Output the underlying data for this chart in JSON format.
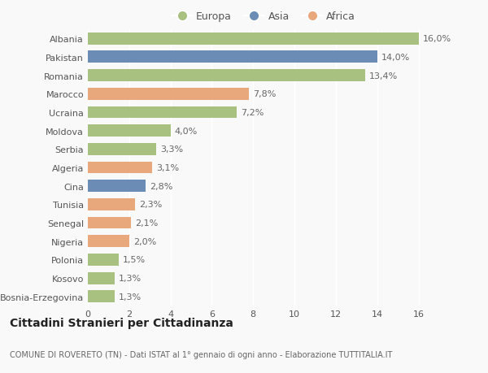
{
  "countries": [
    "Albania",
    "Pakistan",
    "Romania",
    "Marocco",
    "Ucraina",
    "Moldova",
    "Serbia",
    "Algeria",
    "Cina",
    "Tunisia",
    "Senegal",
    "Nigeria",
    "Polonia",
    "Kosovo",
    "Bosnia-Erzegovina"
  ],
  "values": [
    16.0,
    14.0,
    13.4,
    7.8,
    7.2,
    4.0,
    3.3,
    3.1,
    2.8,
    2.3,
    2.1,
    2.0,
    1.5,
    1.3,
    1.3
  ],
  "labels": [
    "16,0%",
    "14,0%",
    "13,4%",
    "7,8%",
    "7,2%",
    "4,0%",
    "3,3%",
    "3,1%",
    "2,8%",
    "2,3%",
    "2,1%",
    "2,0%",
    "1,5%",
    "1,3%",
    "1,3%"
  ],
  "continents": [
    "Europa",
    "Asia",
    "Europa",
    "Africa",
    "Europa",
    "Europa",
    "Europa",
    "Africa",
    "Asia",
    "Africa",
    "Africa",
    "Africa",
    "Europa",
    "Europa",
    "Europa"
  ],
  "colors": {
    "Europa": "#a8c080",
    "Asia": "#6b8db5",
    "Africa": "#e8a87c"
  },
  "title": "Cittadini Stranieri per Cittadinanza",
  "subtitle": "COMUNE DI ROVERETO (TN) - Dati ISTAT al 1° gennaio di ogni anno - Elaborazione TUTTITALIA.IT",
  "xlim": [
    0,
    17
  ],
  "xticks": [
    0,
    2,
    4,
    6,
    8,
    10,
    12,
    14,
    16
  ],
  "background_color": "#f9f9f9",
  "grid_color": "#ffffff",
  "bar_height": 0.65,
  "label_fontsize": 8,
  "tick_fontsize": 8,
  "title_fontsize": 10,
  "subtitle_fontsize": 7
}
